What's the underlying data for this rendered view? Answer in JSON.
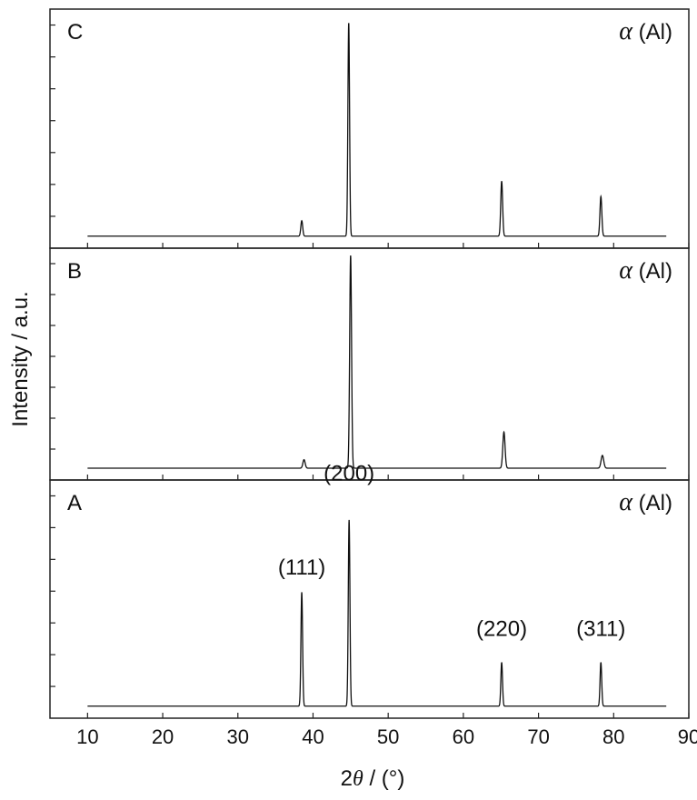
{
  "chart_data": {
    "type": "line",
    "ylabel": "Intensity / a.u.",
    "xlabel": {
      "prefix": "2",
      "symbol": "θ",
      "suffix": " / (°)"
    },
    "xlim": [
      5,
      90
    ],
    "xticks": [
      10,
      20,
      30,
      40,
      50,
      60,
      70,
      80,
      90
    ],
    "panels": [
      {
        "name": "C",
        "phase_symbol": "α",
        "phase_text": " (Al)",
        "baseline": 0.03,
        "x_range": [
          10,
          87
        ],
        "peaks": [
          {
            "x": 38.5,
            "height": 0.07,
            "width": 0.25
          },
          {
            "x": 44.75,
            "height": 0.97,
            "width": 0.22
          },
          {
            "x": 65.1,
            "height": 0.25,
            "width": 0.25
          },
          {
            "x": 78.3,
            "height": 0.18,
            "width": 0.25
          }
        ],
        "peak_labels": []
      },
      {
        "name": "B",
        "phase_symbol": "α",
        "phase_text": " (Al)",
        "baseline": 0.03,
        "x_range": [
          10,
          87
        ],
        "peaks": [
          {
            "x": 38.8,
            "height": 0.04,
            "width": 0.3
          },
          {
            "x": 45.0,
            "height": 1.0,
            "width": 0.25
          },
          {
            "x": 65.4,
            "height": 0.17,
            "width": 0.3
          },
          {
            "x": 78.5,
            "height": 0.06,
            "width": 0.35
          }
        ],
        "peak_labels": []
      },
      {
        "name": "A",
        "phase_symbol": "α",
        "phase_text": " (Al)",
        "baseline": 0.03,
        "x_range": [
          10,
          87
        ],
        "peaks": [
          {
            "x": 38.5,
            "height": 0.52,
            "width": 0.22
          },
          {
            "x": 44.8,
            "height": 0.85,
            "width": 0.22
          },
          {
            "x": 65.1,
            "height": 0.2,
            "width": 0.22
          },
          {
            "x": 78.3,
            "height": 0.2,
            "width": 0.22
          }
        ],
        "peak_labels": [
          {
            "text": "(111)",
            "x": 38.5,
            "y": 0.63
          },
          {
            "text": "(200)",
            "x": 44.8,
            "y": 1.06
          },
          {
            "text": "(220)",
            "x": 65.1,
            "y": 0.35
          },
          {
            "text": "(311)",
            "x": 78.3,
            "y": 0.35
          }
        ]
      }
    ]
  }
}
